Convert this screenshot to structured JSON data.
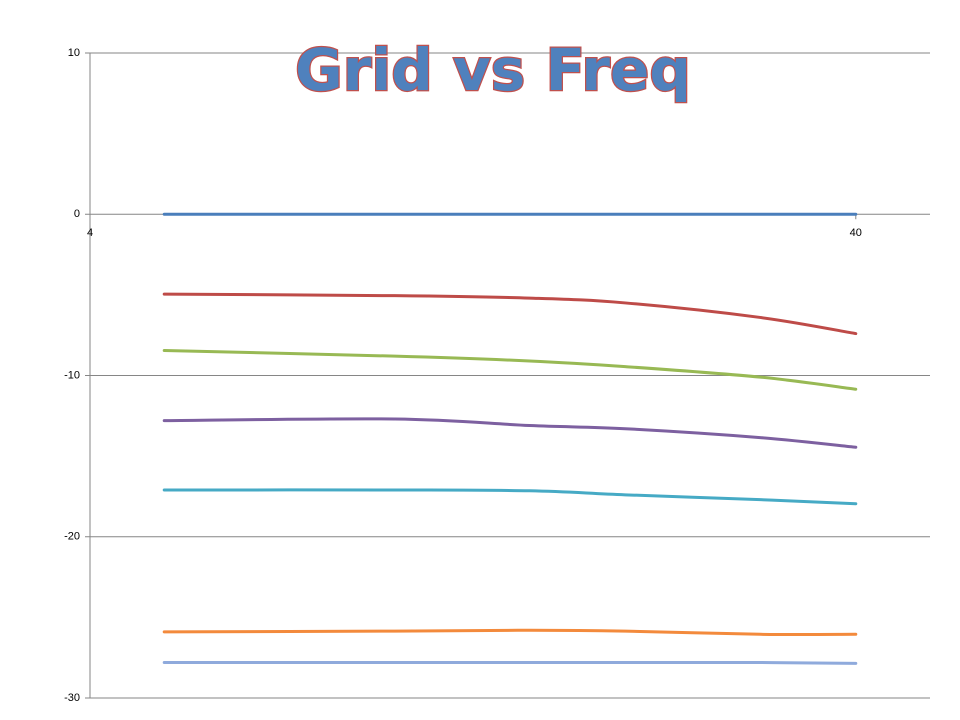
{
  "chart_data": {
    "type": "line",
    "title": "Grid vs Freq",
    "x": [
      5,
      10,
      15,
      20,
      30,
      40
    ],
    "xlim": [
      4,
      50
    ],
    "xticks": [
      4,
      40
    ],
    "xlog": true,
    "ylim": [
      -30,
      10
    ],
    "yticks": [
      -30,
      -20,
      -10,
      0,
      10
    ],
    "grid": true,
    "series": [
      {
        "color": "#4a7ebb",
        "values": [
          0,
          0,
          0,
          0,
          0,
          0
        ]
      },
      {
        "color": "#be4b48",
        "values": [
          -4.95,
          -5.05,
          -5.2,
          -5.5,
          -6.4,
          -7.4
        ]
      },
      {
        "color": "#98b954",
        "values": [
          -8.45,
          -8.8,
          -9.1,
          -9.45,
          -10.1,
          -10.85
        ]
      },
      {
        "color": "#7d60a0",
        "values": [
          -12.8,
          -12.7,
          -13.1,
          -13.3,
          -13.85,
          -14.45
        ]
      },
      {
        "color": "#46aac5",
        "values": [
          -17.1,
          -17.1,
          -17.15,
          -17.4,
          -17.7,
          -17.95
        ]
      },
      {
        "color": "#f38a3c",
        "values": [
          -25.9,
          -25.85,
          -25.8,
          -25.85,
          -26.05,
          -26.05
        ]
      },
      {
        "color": "#8faadc",
        "values": [
          -27.8,
          -27.8,
          -27.8,
          -27.8,
          -27.8,
          -27.85
        ]
      }
    ]
  }
}
